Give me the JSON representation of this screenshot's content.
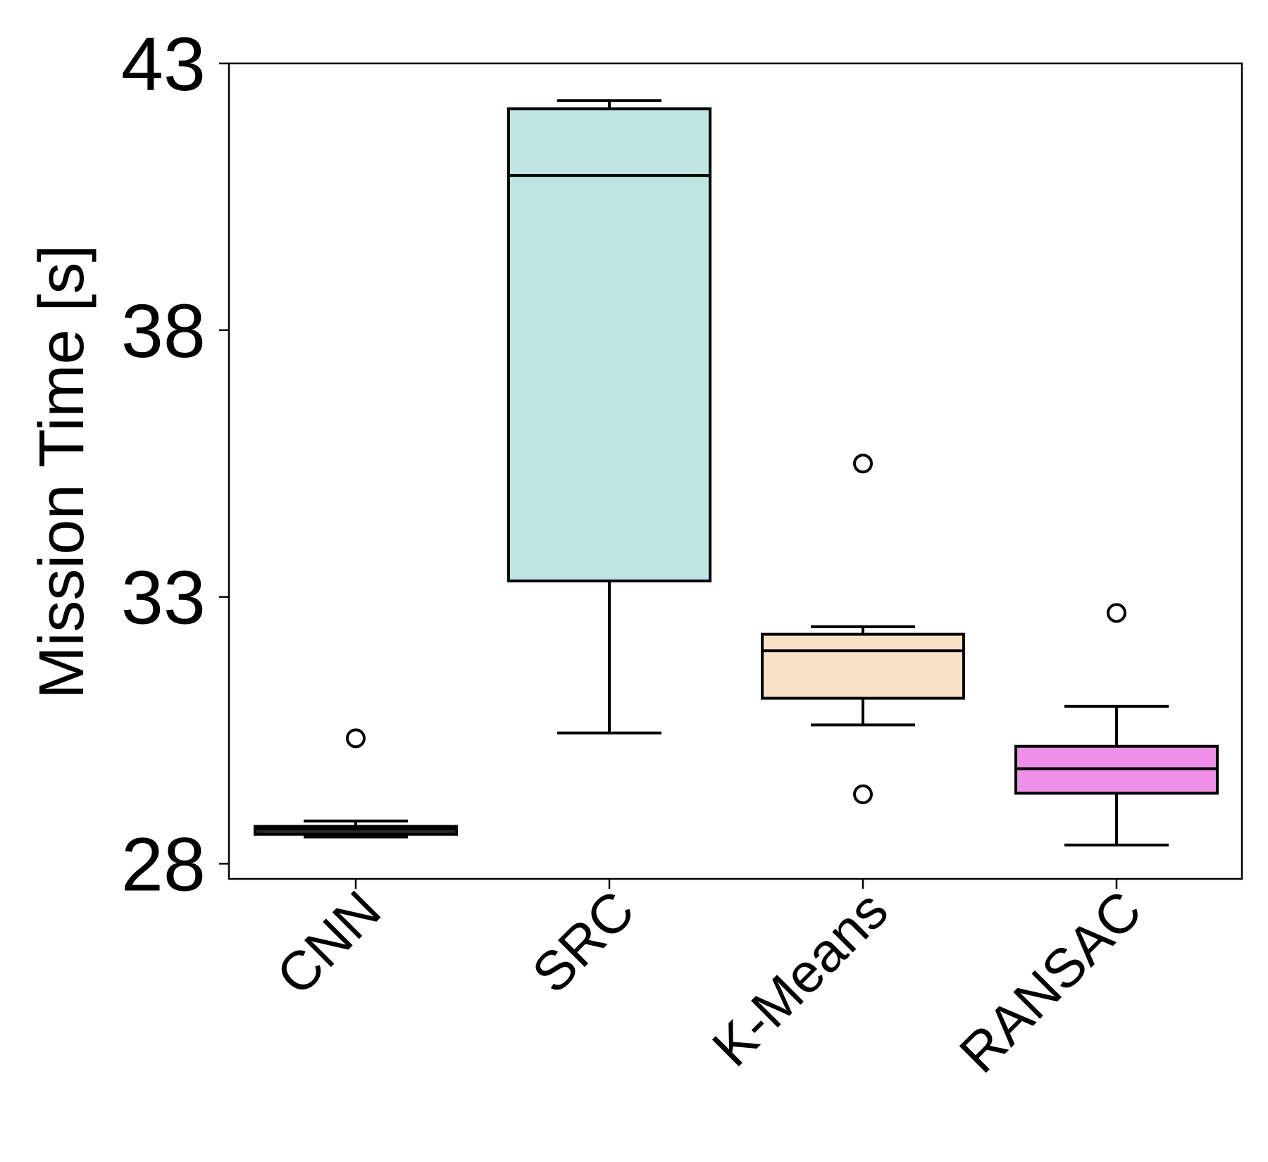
{
  "chart_data": {
    "type": "box",
    "title": "",
    "xlabel": "",
    "ylabel": "Mission Time [s]",
    "ylim": [
      27.7,
      43
    ],
    "yticks": [
      28,
      33,
      38,
      43
    ],
    "ytick_labels": [
      "28",
      "33",
      "38",
      "43"
    ],
    "categories": [
      "CNN",
      "SRC",
      "K-Means",
      "RANSAC"
    ],
    "boxes": [
      {
        "category": "CNN",
        "whisker_low": 28.5,
        "q1": 28.55,
        "median": 28.65,
        "q3": 28.7,
        "whisker_high": 28.8,
        "outliers": [
          30.35
        ],
        "color": "#2a2a2a"
      },
      {
        "category": "SRC",
        "whisker_low": 30.45,
        "q1": 33.3,
        "median": 40.9,
        "q3": 42.15,
        "whisker_high": 42.3,
        "outliers": [],
        "color": "#bfe4e2"
      },
      {
        "category": "K-Means",
        "whisker_low": 30.6,
        "q1": 31.1,
        "median": 31.99,
        "q3": 32.3,
        "whisker_high": 32.44,
        "outliers": [
          35.5,
          29.3
        ],
        "color": "#f8e1c9"
      },
      {
        "category": "RANSAC",
        "whisker_low": 28.35,
        "q1": 29.32,
        "median": 29.78,
        "q3": 30.2,
        "whisker_high": 30.95,
        "outliers": [
          32.7
        ],
        "color": "#ee8fe8"
      }
    ],
    "grid": false,
    "legend": "none"
  }
}
